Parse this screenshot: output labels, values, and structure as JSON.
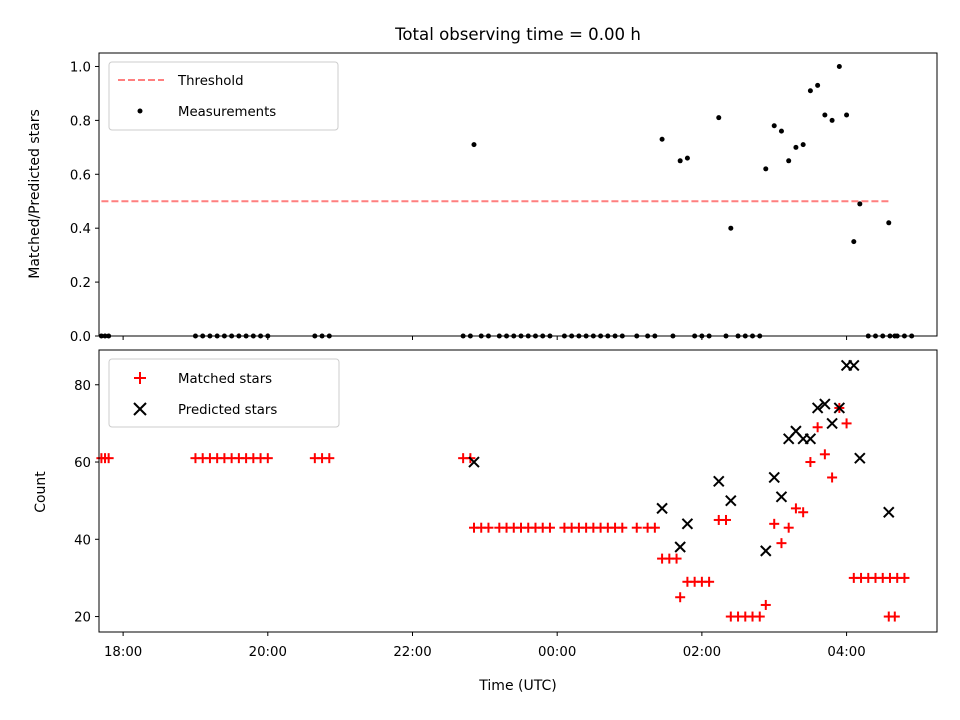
{
  "chart_data": [
    {
      "type": "scatter",
      "title": "Total observing time = 0.00 h",
      "ylabel": "Matched/Predicted stars",
      "xlabel": "",
      "xlim": [
        "17:40",
        "05:15"
      ],
      "ylim": [
        0,
        1.05
      ],
      "y_ticks": [
        "0.0",
        "0.2",
        "0.4",
        "0.6",
        "0.8",
        "1.0"
      ],
      "legend_position": "top-left",
      "threshold": {
        "name": "Threshold",
        "color": "#ff7f7f",
        "y": 0.5,
        "x_range": [
          "17:42",
          "04:37"
        ]
      },
      "series": [
        {
          "name": "Measurements",
          "color": "#000000",
          "points": [
            [
              "17:42",
              0.0
            ],
            [
              "17:45",
              0.0
            ],
            [
              "17:48",
              0.0
            ],
            [
              "19:00",
              0.0
            ],
            [
              "19:06",
              0.0
            ],
            [
              "19:12",
              0.0
            ],
            [
              "19:18",
              0.0
            ],
            [
              "19:24",
              0.0
            ],
            [
              "19:30",
              0.0
            ],
            [
              "19:36",
              0.0
            ],
            [
              "19:42",
              0.0
            ],
            [
              "19:48",
              0.0
            ],
            [
              "19:54",
              0.0
            ],
            [
              "20:00",
              0.0
            ],
            [
              "20:39",
              0.0
            ],
            [
              "20:45",
              0.0
            ],
            [
              "20:51",
              0.0
            ],
            [
              "22:42",
              0.0
            ],
            [
              "22:48",
              0.0
            ],
            [
              "22:51",
              0.71
            ],
            [
              "22:57",
              0.0
            ],
            [
              "23:03",
              0.0
            ],
            [
              "23:12",
              0.0
            ],
            [
              "23:18",
              0.0
            ],
            [
              "23:24",
              0.0
            ],
            [
              "23:30",
              0.0
            ],
            [
              "23:36",
              0.0
            ],
            [
              "23:42",
              0.0
            ],
            [
              "23:48",
              0.0
            ],
            [
              "23:54",
              0.0
            ],
            [
              "00:06",
              0.0
            ],
            [
              "00:12",
              0.0
            ],
            [
              "00:18",
              0.0
            ],
            [
              "00:24",
              0.0
            ],
            [
              "00:30",
              0.0
            ],
            [
              "00:36",
              0.0
            ],
            [
              "00:42",
              0.0
            ],
            [
              "00:48",
              0.0
            ],
            [
              "00:54",
              0.0
            ],
            [
              "01:06",
              0.0
            ],
            [
              "01:15",
              0.0
            ],
            [
              "01:21",
              0.0
            ],
            [
              "01:27",
              0.73
            ],
            [
              "01:36",
              0.0
            ],
            [
              "01:42",
              0.65
            ],
            [
              "01:48",
              0.66
            ],
            [
              "01:54",
              0.0
            ],
            [
              "02:00",
              0.0
            ],
            [
              "02:06",
              0.0
            ],
            [
              "02:14",
              0.81
            ],
            [
              "02:20",
              0.0
            ],
            [
              "02:24",
              0.4
            ],
            [
              "02:30",
              0.0
            ],
            [
              "02:36",
              0.0
            ],
            [
              "02:42",
              0.0
            ],
            [
              "02:48",
              0.0
            ],
            [
              "02:53",
              0.62
            ],
            [
              "03:00",
              0.78
            ],
            [
              "03:06",
              0.76
            ],
            [
              "03:12",
              0.65
            ],
            [
              "03:18",
              0.7
            ],
            [
              "03:24",
              0.71
            ],
            [
              "03:30",
              0.91
            ],
            [
              "03:36",
              0.93
            ],
            [
              "03:42",
              0.82
            ],
            [
              "03:48",
              0.8
            ],
            [
              "03:54",
              1.0
            ],
            [
              "04:00",
              0.82
            ],
            [
              "04:06",
              0.35
            ],
            [
              "04:11",
              0.49
            ],
            [
              "04:18",
              0.0
            ],
            [
              "04:24",
              0.0
            ],
            [
              "04:30",
              0.0
            ],
            [
              "04:36",
              0.0
            ],
            [
              "04:42",
              0.0
            ],
            [
              "04:48",
              0.0
            ],
            [
              "04:54",
              0.0
            ],
            [
              "04:35",
              0.42
            ],
            [
              "04:40",
              0.0
            ]
          ]
        }
      ]
    },
    {
      "type": "scatter",
      "title": "",
      "ylabel": "Count",
      "xlabel": "Time (UTC)",
      "xlim": [
        "17:40",
        "05:15"
      ],
      "ylim": [
        16,
        89
      ],
      "y_ticks": [
        "20",
        "40",
        "60",
        "80"
      ],
      "x_ticks": [
        "18:00",
        "20:00",
        "22:00",
        "00:00",
        "02:00",
        "04:00"
      ],
      "legend_position": "top-left",
      "series": [
        {
          "name": "Matched stars",
          "color": "#ff0000",
          "marker": "plus",
          "points": [
            [
              "17:42",
              61
            ],
            [
              "17:45",
              61
            ],
            [
              "17:48",
              61
            ],
            [
              "19:00",
              61
            ],
            [
              "19:06",
              61
            ],
            [
              "19:12",
              61
            ],
            [
              "19:18",
              61
            ],
            [
              "19:24",
              61
            ],
            [
              "19:30",
              61
            ],
            [
              "19:36",
              61
            ],
            [
              "19:42",
              61
            ],
            [
              "19:48",
              61
            ],
            [
              "19:54",
              61
            ],
            [
              "20:00",
              61
            ],
            [
              "20:39",
              61
            ],
            [
              "20:45",
              61
            ],
            [
              "20:51",
              61
            ],
            [
              "22:42",
              61
            ],
            [
              "22:48",
              61
            ],
            [
              "22:51",
              43
            ],
            [
              "22:57",
              43
            ],
            [
              "23:03",
              43
            ],
            [
              "23:12",
              43
            ],
            [
              "23:18",
              43
            ],
            [
              "23:24",
              43
            ],
            [
              "23:30",
              43
            ],
            [
              "23:36",
              43
            ],
            [
              "23:42",
              43
            ],
            [
              "23:48",
              43
            ],
            [
              "23:54",
              43
            ],
            [
              "00:06",
              43
            ],
            [
              "00:12",
              43
            ],
            [
              "00:18",
              43
            ],
            [
              "00:24",
              43
            ],
            [
              "00:30",
              43
            ],
            [
              "00:36",
              43
            ],
            [
              "00:42",
              43
            ],
            [
              "00:48",
              43
            ],
            [
              "00:54",
              43
            ],
            [
              "01:06",
              43
            ],
            [
              "01:15",
              43
            ],
            [
              "01:21",
              43
            ],
            [
              "01:27",
              35
            ],
            [
              "01:33",
              35
            ],
            [
              "01:39",
              35
            ],
            [
              "01:42",
              25
            ],
            [
              "01:48",
              29
            ],
            [
              "01:54",
              29
            ],
            [
              "02:00",
              29
            ],
            [
              "02:06",
              29
            ],
            [
              "02:14",
              45
            ],
            [
              "02:20",
              45
            ],
            [
              "02:24",
              20
            ],
            [
              "02:30",
              20
            ],
            [
              "02:36",
              20
            ],
            [
              "02:42",
              20
            ],
            [
              "02:48",
              20
            ],
            [
              "02:53",
              23
            ],
            [
              "03:00",
              44
            ],
            [
              "03:06",
              39
            ],
            [
              "03:12",
              43
            ],
            [
              "03:18",
              48
            ],
            [
              "03:24",
              47
            ],
            [
              "03:30",
              60
            ],
            [
              "03:36",
              69
            ],
            [
              "03:42",
              62
            ],
            [
              "03:48",
              56
            ],
            [
              "03:54",
              74
            ],
            [
              "04:00",
              70
            ],
            [
              "04:06",
              30
            ],
            [
              "04:12",
              30
            ],
            [
              "04:18",
              30
            ],
            [
              "04:24",
              30
            ],
            [
              "04:30",
              30
            ],
            [
              "04:36",
              30
            ],
            [
              "04:42",
              30
            ],
            [
              "04:48",
              30
            ],
            [
              "04:35",
              20
            ],
            [
              "04:40",
              20
            ]
          ]
        },
        {
          "name": "Predicted stars",
          "color": "#000000",
          "marker": "x",
          "points": [
            [
              "22:51",
              60
            ],
            [
              "01:27",
              48
            ],
            [
              "01:42",
              38
            ],
            [
              "01:48",
              44
            ],
            [
              "02:14",
              55
            ],
            [
              "02:24",
              50
            ],
            [
              "02:53",
              37
            ],
            [
              "03:00",
              56
            ],
            [
              "03:06",
              51
            ],
            [
              "03:12",
              66
            ],
            [
              "03:18",
              68
            ],
            [
              "03:24",
              66
            ],
            [
              "03:30",
              66
            ],
            [
              "03:36",
              74
            ],
            [
              "03:42",
              75
            ],
            [
              "03:48",
              70
            ],
            [
              "03:54",
              74
            ],
            [
              "04:00",
              85
            ],
            [
              "04:06",
              85
            ],
            [
              "04:11",
              61
            ],
            [
              "04:35",
              47
            ]
          ]
        }
      ]
    }
  ]
}
